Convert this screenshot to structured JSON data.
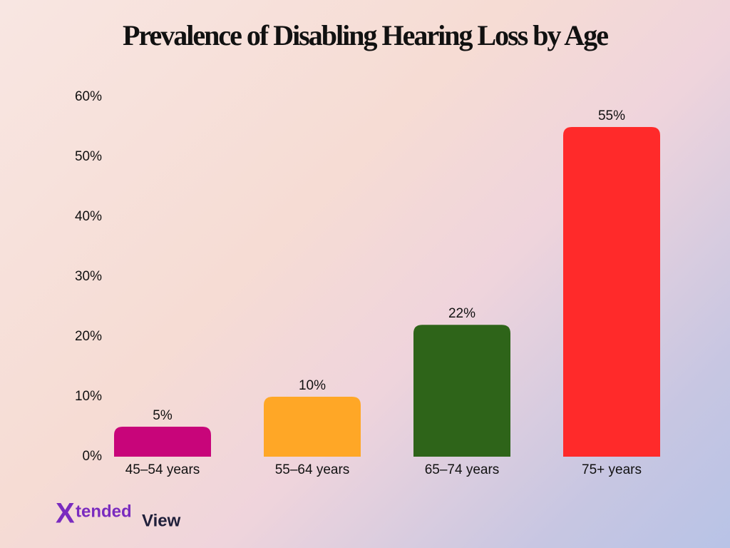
{
  "chart_data": {
    "type": "bar",
    "title": "Prevalence of Disabling Hearing Loss by Age",
    "categories": [
      "45–54 years",
      "55–64 years",
      "65–74 years",
      "75+ years"
    ],
    "values": [
      5,
      10,
      22,
      55
    ],
    "value_labels": [
      "5%",
      "10%",
      "22%",
      "55%"
    ],
    "colors": [
      "#c8057a",
      "#ffa726",
      "#2e6419",
      "#ff2a2a"
    ],
    "ylim": [
      0,
      60
    ],
    "yticks": [
      {
        "value": 0,
        "label": "0%"
      },
      {
        "value": 10,
        "label": "10%"
      },
      {
        "value": 20,
        "label": "20%"
      },
      {
        "value": 30,
        "label": "30%"
      },
      {
        "value": 40,
        "label": "40%"
      },
      {
        "value": 50,
        "label": "50%"
      },
      {
        "value": 60,
        "label": "60%"
      }
    ],
    "grid": false
  },
  "logo": [
    "X",
    "tended",
    "View"
  ]
}
